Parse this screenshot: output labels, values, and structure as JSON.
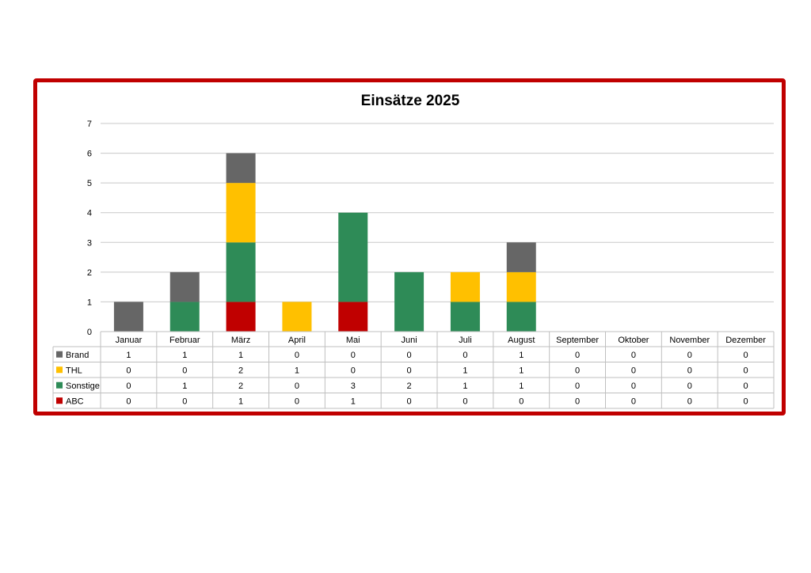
{
  "chart_data": {
    "type": "bar",
    "stacked": true,
    "title": "Einsätze 2025",
    "categories": [
      "Januar",
      "Februar",
      "März",
      "April",
      "Mai",
      "Juni",
      "Juli",
      "August",
      "September",
      "Oktober",
      "November",
      "Dezember"
    ],
    "series": [
      {
        "name": "ABC",
        "color": "#c00000",
        "values": [
          0,
          0,
          1,
          0,
          1,
          0,
          0,
          0,
          0,
          0,
          0,
          0
        ]
      },
      {
        "name": "Sonstige",
        "color": "#2e8b57",
        "values": [
          0,
          1,
          2,
          0,
          3,
          2,
          1,
          1,
          0,
          0,
          0,
          0
        ]
      },
      {
        "name": "THL",
        "color": "#ffc000",
        "values": [
          0,
          0,
          2,
          1,
          0,
          0,
          1,
          1,
          0,
          0,
          0,
          0
        ]
      },
      {
        "name": "Brand",
        "color": "#666666",
        "values": [
          1,
          1,
          1,
          0,
          0,
          0,
          0,
          1,
          0,
          0,
          0,
          0
        ]
      }
    ],
    "table_order": [
      "Brand",
      "THL",
      "Sonstige",
      "ABC"
    ],
    "ylim": [
      0,
      7
    ],
    "yticks": [
      0,
      1,
      2,
      3,
      4,
      5,
      6,
      7
    ],
    "grid": true,
    "legend": "data-table",
    "frame_color": "#c00000"
  }
}
